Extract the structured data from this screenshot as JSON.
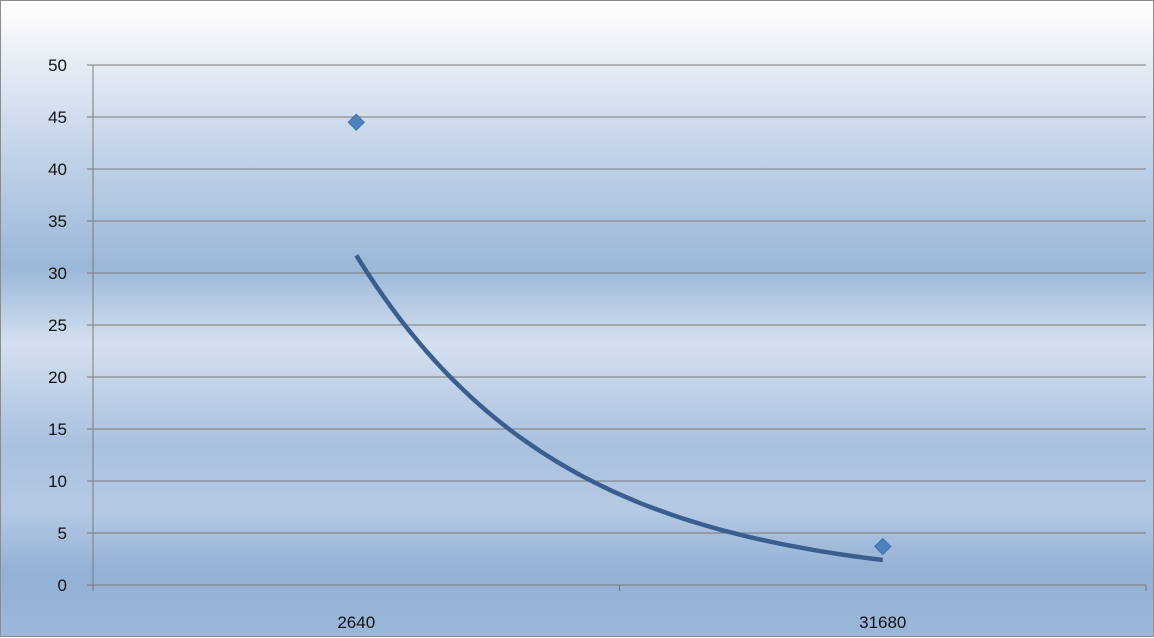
{
  "chart_data": {
    "type": "scatter",
    "title": "",
    "xlabel": "",
    "ylabel": "",
    "categories": [
      "2640",
      "31680"
    ],
    "ylim": [
      0,
      50
    ],
    "yticks": [
      "0",
      "5",
      "10",
      "15",
      "20",
      "25",
      "30",
      "35",
      "40",
      "45",
      "50"
    ],
    "series": [
      {
        "values": [
          44.5,
          3.7
        ],
        "marker": "diamond",
        "color": "#4f81bd"
      }
    ],
    "trendline": {
      "type": "power",
      "color": "#3a5f8f",
      "from": 31.7,
      "to": 2.4
    },
    "grid": true,
    "legend": "none"
  }
}
